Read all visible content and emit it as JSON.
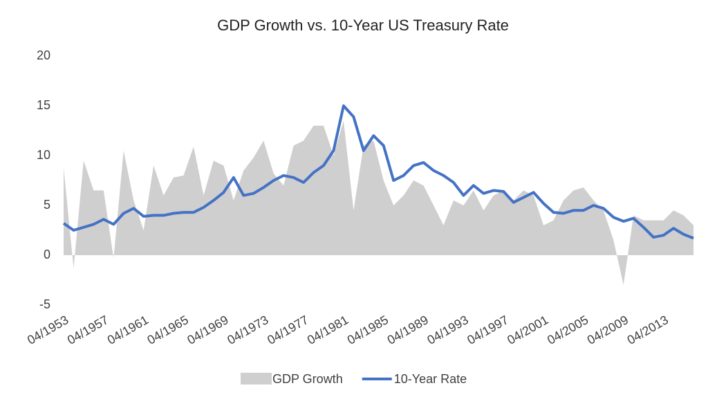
{
  "chart_data": {
    "type": "area-line",
    "title": "GDP Growth vs. 10-Year US Treasury Rate",
    "categories": [
      "04/1953",
      null,
      null,
      null,
      "04/1957",
      null,
      null,
      null,
      "04/1961",
      null,
      null,
      null,
      "04/1965",
      null,
      null,
      null,
      "04/1969",
      null,
      null,
      null,
      "04/1973",
      null,
      null,
      null,
      "04/1977",
      null,
      null,
      null,
      "04/1981",
      null,
      null,
      null,
      "04/1985",
      null,
      null,
      null,
      "04/1989",
      null,
      null,
      null,
      "04/1993",
      null,
      null,
      null,
      "04/1997",
      null,
      null,
      null,
      "04/2001",
      null,
      null,
      null,
      "04/2005",
      null,
      null,
      null,
      "04/2009",
      null,
      null,
      null,
      "04/2013",
      null,
      null,
      null
    ],
    "series": [
      {
        "name": "GDP Growth",
        "color": "#d0cfd0",
        "kind": "area",
        "values": [
          8.8,
          -1.3,
          9.5,
          6.5,
          6.5,
          -0.3,
          10.5,
          5.5,
          2.5,
          9.0,
          6.0,
          7.8,
          8.0,
          10.9,
          6.0,
          9.5,
          9.0,
          5.5,
          8.5,
          9.8,
          11.5,
          8.2,
          7.0,
          11.0,
          11.5,
          13.0,
          13.0,
          10.0,
          13.5,
          4.5,
          11.0,
          11.5,
          7.5,
          5.0,
          6.0,
          7.5,
          7.0,
          5.0,
          3.0,
          5.5,
          5.0,
          6.5,
          4.5,
          6.0,
          6.5,
          5.5,
          6.5,
          6.0,
          3.0,
          3.5,
          5.5,
          6.5,
          6.8,
          5.5,
          4.5,
          1.5,
          -3.0,
          4.0,
          3.5,
          3.5,
          3.5,
          4.5,
          4.0,
          3.0
        ]
      },
      {
        "name": "10-Year Rate",
        "color": "#4472c4",
        "kind": "line",
        "values": [
          3.2,
          2.5,
          2.8,
          3.1,
          3.6,
          3.1,
          4.2,
          4.7,
          3.9,
          4.0,
          4.0,
          4.2,
          4.3,
          4.3,
          4.8,
          5.5,
          6.3,
          7.8,
          6.0,
          6.2,
          6.8,
          7.5,
          8.0,
          7.8,
          7.3,
          8.3,
          9.0,
          10.5,
          15.0,
          13.9,
          10.5,
          12.0,
          11.0,
          7.5,
          8.0,
          9.0,
          9.3,
          8.5,
          8.0,
          7.3,
          6.0,
          7.0,
          6.2,
          6.5,
          6.4,
          5.3,
          5.8,
          6.3,
          5.2,
          4.3,
          4.2,
          4.5,
          4.5,
          5.0,
          4.7,
          3.8,
          3.4,
          3.7,
          2.8,
          1.8,
          2.0,
          2.7,
          2.1,
          1.7
        ]
      }
    ],
    "ylim": [
      -5,
      20
    ],
    "yticks": [
      -5,
      0,
      5,
      10,
      15,
      20
    ],
    "grid": false,
    "legend": "bottom"
  }
}
